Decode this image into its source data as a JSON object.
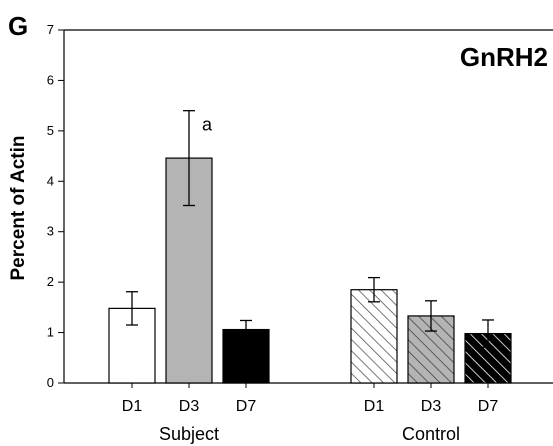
{
  "panel_label": "G",
  "chart_data": {
    "type": "bar",
    "title": "GnRH2",
    "ylabel": "Percent of Actin",
    "xlabel": "",
    "ylim": [
      0,
      7
    ],
    "yticks": [
      0,
      1,
      2,
      3,
      4,
      5,
      6,
      7
    ],
    "grid": false,
    "legend": "none",
    "groups": [
      {
        "name": "Subject",
        "bars": [
          {
            "label": "D1",
            "value": 1.48,
            "error": 0.33,
            "fill": "white",
            "pattern": "none",
            "annotation": ""
          },
          {
            "label": "D3",
            "value": 4.46,
            "error": 0.94,
            "fill": "gray",
            "pattern": "none",
            "annotation": "a"
          },
          {
            "label": "D7",
            "value": 1.06,
            "error": 0.18,
            "fill": "black",
            "pattern": "none",
            "annotation": ""
          }
        ]
      },
      {
        "name": "Control",
        "bars": [
          {
            "label": "D1",
            "value": 1.85,
            "error": 0.24,
            "fill": "white",
            "pattern": "hatch",
            "annotation": ""
          },
          {
            "label": "D3",
            "value": 1.33,
            "error": 0.3,
            "fill": "gray",
            "pattern": "hatch",
            "annotation": ""
          },
          {
            "label": "D7",
            "value": 0.98,
            "error": 0.27,
            "fill": "black",
            "pattern": "hatch",
            "annotation": ""
          }
        ]
      }
    ],
    "colors": {
      "white": "#ffffff",
      "gray": "#b4b4b4",
      "black": "#000000",
      "hatch_on_white": "#555555",
      "hatch_on_gray": "#444444",
      "hatch_on_black": "#ffffff"
    }
  }
}
